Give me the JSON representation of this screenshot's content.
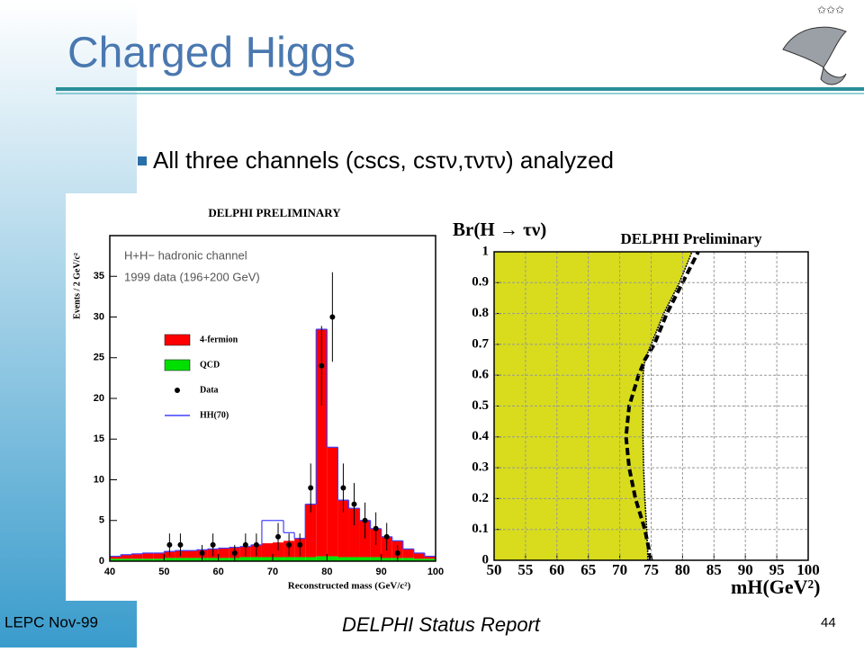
{
  "slide": {
    "title": "Charged Higgs",
    "bullet": "All three channels (cscs, csτν,τντν) analyzed",
    "footer_left": "LEPC Nov-99",
    "footer_center": "DELPHI Status Report",
    "page_number": "44"
  },
  "chart_data": [
    {
      "type": "histogram",
      "title": "DELPHI PRELIMINARY",
      "annotations": [
        "H+H− hadronic channel",
        "1999 data (196+200 GeV)"
      ],
      "x_label": "Reconstructed mass (GeV/c²)",
      "y_label": "Events / 2 GeV/c²",
      "bins": [
        40,
        42,
        44,
        46,
        48,
        50,
        52,
        54,
        56,
        58,
        60,
        62,
        64,
        66,
        68,
        70,
        72,
        74,
        76,
        78,
        80,
        82,
        84,
        86,
        88,
        90,
        92,
        94,
        96,
        98,
        100
      ],
      "series": [
        {
          "name": "QCD",
          "color": "#00e000",
          "values": [
            0.3,
            0.3,
            0.3,
            0.3,
            0.3,
            0.4,
            0.4,
            0.4,
            0.4,
            0.4,
            0.4,
            0.4,
            0.5,
            0.5,
            0.5,
            0.5,
            0.5,
            0.5,
            0.5,
            0.6,
            0.6,
            0.5,
            0.5,
            0.5,
            0.5,
            0.4,
            0.4,
            0.4,
            0.3,
            0.3
          ]
        },
        {
          "name": "4-fermion",
          "color": "#ff0000",
          "values": [
            0.3,
            0.5,
            0.6,
            0.7,
            0.7,
            0.8,
            0.9,
            0.9,
            1,
            1.1,
            1.2,
            1.3,
            1.3,
            1.5,
            1.7,
            1.8,
            2,
            2.3,
            6.5,
            27.9,
            13.4,
            7,
            6,
            4.5,
            3.5,
            2.6,
            2.1,
            1.1,
            0.7,
            0.3
          ]
        }
      ],
      "points": {
        "name": "Data",
        "color": "#000000",
        "x": [
          51,
          53,
          57,
          59,
          63,
          65,
          67,
          71,
          73,
          75,
          77,
          79,
          81,
          83,
          85,
          87,
          89,
          91,
          93
        ],
        "values": [
          2,
          2,
          1,
          2,
          1,
          2,
          2,
          3,
          2,
          2,
          9,
          24,
          30,
          9,
          7,
          5,
          4,
          3,
          1
        ],
        "errors": [
          1.4,
          1.4,
          1,
          1.4,
          1,
          1.4,
          1.4,
          1.7,
          1.4,
          1.4,
          3,
          4.9,
          5.5,
          3,
          2.6,
          2.2,
          2,
          1.7,
          1
        ]
      },
      "line": {
        "name": "HH(70)",
        "color": "#4040ff",
        "values": [
          0.6,
          0.8,
          0.9,
          1,
          1,
          1.2,
          1.3,
          1.3,
          1.4,
          1.5,
          1.6,
          1.7,
          1.8,
          2,
          5,
          5,
          3.5,
          2.8,
          7,
          28.5,
          14,
          7.5,
          6.5,
          5,
          4,
          3,
          2.5,
          1.5,
          1,
          0.6
        ]
      },
      "xlim": [
        40,
        100
      ],
      "xticks": [
        40,
        50,
        60,
        70,
        80,
        90,
        100
      ],
      "ylim": [
        0,
        40
      ],
      "yticks": [
        0,
        5,
        10,
        15,
        20,
        25,
        30,
        35
      ]
    },
    {
      "type": "area",
      "title": "DELPHI Preliminary",
      "x_label": "mH(GeV²)",
      "y_label": "Br(H → τν)",
      "series": [
        {
          "color": "#d8dc1c",
          "x": [
            74.5,
            74.3,
            74,
            73.8,
            73.7,
            73.7,
            73.7,
            74,
            75,
            77,
            79.5,
            81.5
          ],
          "y": [
            0,
            0.1,
            0.2,
            0.3,
            0.4,
            0.5,
            0.6,
            0.65,
            0.7,
            0.8,
            0.9,
            1
          ]
        },
        {
          "color": "#000000",
          "x": [
            75,
            74,
            72.5,
            71.5,
            71,
            71.5,
            73,
            74,
            75.5,
            77.5,
            80,
            82.5
          ],
          "y": [
            0,
            0.1,
            0.2,
            0.3,
            0.4,
            0.5,
            0.6,
            0.65,
            0.7,
            0.8,
            0.9,
            1
          ]
        }
      ],
      "xlim": [
        50,
        100
      ],
      "xticks": [
        50,
        55,
        60,
        65,
        70,
        75,
        80,
        85,
        90,
        95,
        100
      ],
      "ylim": [
        0,
        1
      ],
      "yticks": [
        0,
        0.1,
        0.2,
        0.3,
        0.4,
        0.5,
        0.6,
        0.7,
        0.8,
        0.9,
        1
      ],
      "grid": true
    }
  ]
}
